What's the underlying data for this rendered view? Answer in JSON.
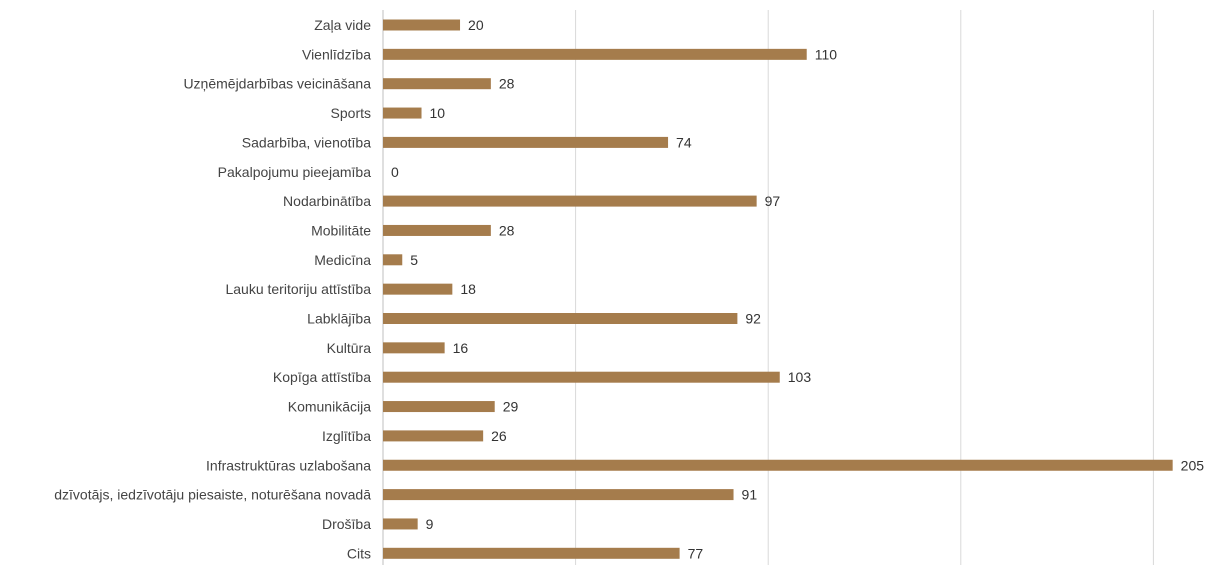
{
  "chart_data": {
    "type": "bar",
    "orientation": "horizontal",
    "categories": [
      "Zaļa vide",
      "Vienlīdzība",
      "Uzņēmējdarbības veicināšana",
      "Sports",
      "Sadarbība, vienotība",
      "Pakalpojumu pieejamība",
      "Nodarbinātība",
      "Mobilitāte",
      "Medicīna",
      "Lauku teritoriju attīstība",
      "Labklājība",
      "Kultūra",
      "Kopīga attīstība",
      "Komunikācija",
      "Izglītība",
      "Infrastruktūras uzlabošana",
      "dzīvotājs, iedzīvotāju piesaiste, noturēšana novadā",
      "Drošība",
      "Cits"
    ],
    "values": [
      20,
      110,
      28,
      10,
      74,
      0,
      97,
      28,
      5,
      18,
      92,
      16,
      103,
      29,
      26,
      205,
      91,
      9,
      77
    ],
    "xlim": [
      0,
      210
    ],
    "grid": true,
    "data_labels": true,
    "bar_color": "#a57c4c",
    "gridline_color": "#d9d9d9"
  }
}
